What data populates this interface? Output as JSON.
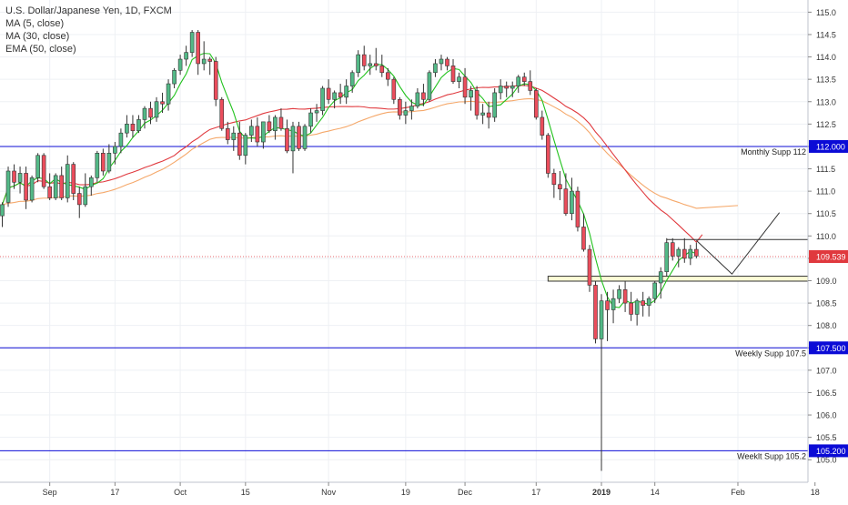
{
  "legend": {
    "symbol": "U.S. Dollar/Japanese Yen, 1D, FXCM",
    "ma5": "MA (5, close)",
    "ma30": "MA (30, close)",
    "ema50": "EMA (50, close)"
  },
  "colors": {
    "up": "#53b987",
    "down": "#eb4d5c",
    "wick": "#333333",
    "ma5": "#22c21e",
    "ma30": "#e0393e",
    "ema50": "#f5a86a",
    "level": "#0b0bd6",
    "last_price": "#e0393e",
    "grid": "#eef0f4"
  },
  "chart_data": {
    "type": "candlestick",
    "y_range": [
      104.7,
      115.15
    ],
    "y_ticks": [
      105.0,
      105.5,
      106.0,
      106.5,
      107.0,
      107.5,
      108.0,
      108.5,
      109.0,
      109.5,
      110.0,
      110.5,
      111.0,
      111.5,
      112.0,
      112.5,
      113.0,
      113.5,
      114.0,
      114.5,
      115.0
    ],
    "x_ticks": [
      {
        "label": "Sep",
        "index": 8
      },
      {
        "label": "17",
        "index": 19
      },
      {
        "label": "Oct",
        "index": 30
      },
      {
        "label": "15",
        "index": 41
      },
      {
        "label": "Nov",
        "index": 55
      },
      {
        "label": "19",
        "index": 68
      },
      {
        "label": "Dec",
        "index": 78
      },
      {
        "label": "17",
        "index": 90
      },
      {
        "label": "2019",
        "index": 101
      },
      {
        "label": "14",
        "index": 110
      },
      {
        "label": "Feb",
        "index": 124
      },
      {
        "label": "18",
        "index": 137
      }
    ],
    "candles": [
      [
        110.45,
        110.75,
        110.2,
        110.7
      ],
      [
        110.75,
        111.55,
        110.65,
        111.45
      ],
      [
        111.45,
        111.6,
        111.05,
        111.2
      ],
      [
        111.2,
        111.55,
        110.95,
        111.4
      ],
      [
        111.4,
        111.55,
        110.6,
        110.8
      ],
      [
        110.8,
        111.35,
        110.75,
        111.3
      ],
      [
        111.3,
        111.85,
        111.2,
        111.8
      ],
      [
        111.8,
        111.85,
        111.05,
        111.1
      ],
      [
        111.1,
        111.4,
        110.8,
        110.85
      ],
      [
        110.85,
        111.4,
        110.8,
        111.35
      ],
      [
        111.35,
        111.55,
        110.8,
        110.85
      ],
      [
        110.85,
        111.8,
        110.75,
        111.6
      ],
      [
        111.6,
        111.65,
        110.8,
        110.95
      ],
      [
        110.95,
        111.1,
        110.4,
        110.7
      ],
      [
        110.7,
        111.4,
        110.65,
        111.1
      ],
      [
        111.1,
        111.35,
        110.9,
        111.3
      ],
      [
        111.3,
        111.9,
        111.2,
        111.85
      ],
      [
        111.85,
        111.95,
        111.35,
        111.45
      ],
      [
        111.45,
        112.05,
        111.4,
        111.85
      ],
      [
        111.85,
        112.1,
        111.6,
        112.0
      ],
      [
        112.0,
        112.4,
        111.85,
        112.3
      ],
      [
        112.3,
        112.7,
        112.2,
        112.5
      ],
      [
        112.5,
        112.7,
        112.2,
        112.35
      ],
      [
        112.35,
        112.7,
        112.3,
        112.6
      ],
      [
        112.6,
        112.9,
        112.4,
        112.85
      ],
      [
        112.85,
        113.0,
        112.5,
        112.65
      ],
      [
        112.65,
        113.1,
        112.55,
        113.0
      ],
      [
        113.0,
        113.2,
        112.75,
        112.95
      ],
      [
        112.95,
        113.5,
        112.8,
        113.4
      ],
      [
        113.4,
        113.75,
        113.3,
        113.7
      ],
      [
        113.7,
        114.05,
        113.6,
        113.95
      ],
      [
        113.95,
        114.25,
        113.8,
        114.1
      ],
      [
        114.1,
        114.6,
        114.0,
        114.55
      ],
      [
        114.55,
        114.6,
        113.6,
        113.85
      ],
      [
        113.85,
        114.35,
        113.7,
        113.95
      ],
      [
        113.95,
        114.0,
        113.6,
        113.9
      ],
      [
        113.9,
        114.0,
        112.9,
        113.05
      ],
      [
        113.05,
        113.1,
        112.35,
        112.4
      ],
      [
        112.4,
        112.55,
        112.05,
        112.15
      ],
      [
        112.15,
        112.45,
        111.9,
        112.3
      ],
      [
        112.3,
        112.55,
        111.7,
        111.8
      ],
      [
        111.8,
        112.3,
        111.6,
        112.25
      ],
      [
        112.25,
        112.6,
        112.1,
        112.45
      ],
      [
        112.45,
        112.65,
        112.0,
        112.1
      ],
      [
        112.1,
        112.55,
        111.95,
        112.55
      ],
      [
        112.55,
        112.7,
        112.3,
        112.35
      ],
      [
        112.35,
        112.7,
        112.15,
        112.65
      ],
      [
        112.65,
        112.85,
        112.35,
        112.4
      ],
      [
        112.4,
        112.6,
        111.85,
        111.9
      ],
      [
        111.9,
        112.55,
        111.4,
        112.45
      ],
      [
        112.45,
        112.55,
        111.9,
        111.95
      ],
      [
        111.95,
        112.5,
        111.9,
        112.45
      ],
      [
        112.45,
        112.85,
        112.3,
        112.75
      ],
      [
        112.75,
        112.95,
        112.55,
        112.8
      ],
      [
        112.8,
        113.35,
        112.7,
        113.3
      ],
      [
        113.3,
        113.5,
        112.95,
        113.05
      ],
      [
        113.05,
        113.25,
        112.85,
        113.2
      ],
      [
        113.2,
        113.4,
        112.95,
        113.1
      ],
      [
        113.1,
        113.5,
        112.95,
        113.35
      ],
      [
        113.35,
        113.7,
        113.2,
        113.65
      ],
      [
        113.65,
        114.15,
        113.55,
        114.05
      ],
      [
        114.05,
        114.25,
        113.7,
        113.8
      ],
      [
        113.8,
        114.05,
        113.6,
        113.85
      ],
      [
        113.85,
        114.2,
        113.7,
        113.8
      ],
      [
        113.8,
        114.05,
        113.55,
        113.65
      ],
      [
        113.65,
        113.75,
        113.35,
        113.5
      ],
      [
        113.5,
        113.55,
        112.95,
        113.05
      ],
      [
        113.05,
        113.1,
        112.6,
        112.7
      ],
      [
        112.7,
        113.0,
        112.5,
        112.8
      ],
      [
        112.8,
        113.05,
        112.6,
        112.9
      ],
      [
        112.9,
        113.3,
        112.85,
        113.2
      ],
      [
        113.2,
        113.4,
        112.9,
        113.05
      ],
      [
        113.05,
        113.7,
        113.0,
        113.65
      ],
      [
        113.65,
        113.95,
        113.55,
        113.85
      ],
      [
        113.85,
        114.05,
        113.7,
        113.95
      ],
      [
        113.95,
        114.0,
        113.7,
        113.8
      ],
      [
        113.8,
        113.95,
        113.4,
        113.45
      ],
      [
        113.45,
        113.65,
        113.3,
        113.55
      ],
      [
        113.55,
        113.75,
        112.95,
        113.1
      ],
      [
        113.1,
        113.35,
        112.8,
        113.25
      ],
      [
        113.25,
        113.35,
        112.6,
        112.7
      ],
      [
        112.7,
        112.95,
        112.5,
        112.75
      ],
      [
        112.75,
        113.0,
        112.4,
        112.65
      ],
      [
        112.65,
        113.3,
        112.55,
        113.2
      ],
      [
        113.2,
        113.5,
        113.05,
        113.35
      ],
      [
        113.35,
        113.45,
        113.1,
        113.3
      ],
      [
        113.3,
        113.45,
        113.1,
        113.35
      ],
      [
        113.35,
        113.6,
        113.2,
        113.55
      ],
      [
        113.55,
        113.65,
        113.35,
        113.45
      ],
      [
        113.45,
        113.7,
        113.15,
        113.25
      ],
      [
        113.25,
        113.3,
        112.6,
        112.65
      ],
      [
        112.65,
        112.8,
        112.15,
        112.25
      ],
      [
        112.25,
        112.3,
        111.3,
        111.4
      ],
      [
        111.4,
        111.5,
        110.85,
        111.15
      ],
      [
        111.15,
        111.45,
        110.8,
        111.05
      ],
      [
        111.05,
        111.4,
        110.45,
        110.5
      ],
      [
        110.5,
        111.3,
        110.35,
        111.0
      ],
      [
        111.0,
        111.1,
        110.1,
        110.2
      ],
      [
        110.2,
        110.5,
        109.65,
        109.7
      ],
      [
        109.7,
        109.8,
        108.75,
        108.9
      ],
      [
        108.9,
        109.0,
        107.6,
        107.7
      ],
      [
        107.7,
        108.7,
        104.75,
        108.55
      ],
      [
        108.55,
        108.75,
        107.65,
        108.35
      ],
      [
        108.35,
        108.8,
        108.05,
        108.6
      ],
      [
        108.6,
        108.9,
        108.5,
        108.8
      ],
      [
        108.8,
        109.0,
        108.3,
        108.5
      ],
      [
        108.5,
        108.75,
        108.1,
        108.25
      ],
      [
        108.25,
        108.6,
        108.0,
        108.55
      ],
      [
        108.55,
        108.75,
        108.2,
        108.45
      ],
      [
        108.45,
        108.65,
        108.2,
        108.6
      ],
      [
        108.6,
        109.0,
        108.5,
        108.95
      ],
      [
        108.95,
        109.3,
        108.6,
        109.2
      ],
      [
        109.2,
        109.95,
        109.1,
        109.85
      ],
      [
        109.85,
        109.95,
        109.45,
        109.55
      ],
      [
        109.55,
        109.75,
        109.3,
        109.7
      ],
      [
        109.7,
        109.95,
        109.4,
        109.5
      ],
      [
        109.5,
        109.8,
        109.35,
        109.7
      ],
      [
        109.7,
        109.85,
        109.5,
        109.55
      ]
    ],
    "levels": [
      {
        "value": 112.0,
        "label": "Monthly Supp 112",
        "price_label": "112.000"
      },
      {
        "value": 107.5,
        "label": "Weekly Supp 107.5",
        "price_label": "107.500"
      },
      {
        "value": 105.2,
        "label": "Weeklt Supp 105.2",
        "price_label": "105.200"
      }
    ],
    "last_price": {
      "value": 109.539,
      "label": "109.539"
    },
    "resistance_line": {
      "value": 109.92,
      "from_index": 112,
      "to_index": 150
    },
    "support_zone": {
      "from": 108.99,
      "to": 109.1,
      "from_index": 92,
      "to_index": 150
    },
    "projection": [
      [
        117,
        109.9
      ],
      [
        123,
        109.15
      ],
      [
        131,
        110.52
      ]
    ],
    "ma30_end": {
      "index": 118,
      "value": 110.03
    },
    "ema50_end": {
      "index": 124,
      "value": 110.68
    }
  }
}
